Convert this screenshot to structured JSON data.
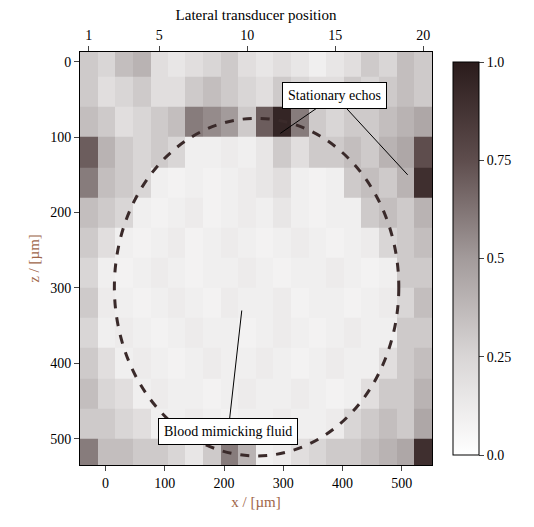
{
  "chart_data": {
    "type": "heatmap",
    "x_title": "x / [µm]",
    "y_title": "z / [µm]",
    "x2_title": "Lateral transducer position",
    "xlim": [
      -43,
      551
    ],
    "xticks": [
      0,
      100,
      200,
      300,
      400,
      500
    ],
    "x2lim": [
      0.5,
      20.5
    ],
    "x2ticks": [
      1,
      5,
      10,
      15,
      20
    ],
    "ylim": [
      535,
      -13
    ],
    "yticks": [
      0,
      100,
      200,
      300,
      400,
      500
    ],
    "grid": false,
    "x": [
      -28,
      2,
      31,
      61,
      91,
      120,
      150,
      180,
      209,
      239,
      269,
      298,
      328,
      358,
      387,
      417,
      447,
      477,
      506,
      536
    ],
    "y": [
      0,
      40,
      80,
      120,
      160,
      200,
      240,
      280,
      320,
      360,
      400,
      440,
      480,
      520
    ],
    "z": [
      [
        0.3,
        0.25,
        0.35,
        0.4,
        0.2,
        0.15,
        0.2,
        0.25,
        0.3,
        0.2,
        0.15,
        0.2,
        0.15,
        0.1,
        0.15,
        0.2,
        0.3,
        0.25,
        0.35,
        0.3
      ],
      [
        0.3,
        0.2,
        0.25,
        0.3,
        0.2,
        0.2,
        0.3,
        0.35,
        0.3,
        0.25,
        0.2,
        0.3,
        0.25,
        0.2,
        0.2,
        0.3,
        0.25,
        0.3,
        0.35,
        0.3
      ],
      [
        0.35,
        0.3,
        0.2,
        0.25,
        0.3,
        0.35,
        0.6,
        0.55,
        0.5,
        0.3,
        0.7,
        0.95,
        0.6,
        0.3,
        0.25,
        0.3,
        0.3,
        0.35,
        0.4,
        0.45
      ],
      [
        0.7,
        0.4,
        0.3,
        0.25,
        0.3,
        0.25,
        0.1,
        0.1,
        0.12,
        0.1,
        0.15,
        0.3,
        0.2,
        0.3,
        0.3,
        0.35,
        0.3,
        0.4,
        0.45,
        0.75
      ],
      [
        0.6,
        0.35,
        0.3,
        0.25,
        0.1,
        0.08,
        0.1,
        0.08,
        0.1,
        0.12,
        0.15,
        0.2,
        0.1,
        0.08,
        0.1,
        0.3,
        0.35,
        0.3,
        0.4,
        0.9
      ],
      [
        0.35,
        0.3,
        0.25,
        0.1,
        0.08,
        0.1,
        0.12,
        0.08,
        0.1,
        0.12,
        0.1,
        0.15,
        0.1,
        0.08,
        0.1,
        0.1,
        0.3,
        0.35,
        0.3,
        0.4
      ],
      [
        0.3,
        0.2,
        0.1,
        0.08,
        0.1,
        0.12,
        0.08,
        0.1,
        0.12,
        0.1,
        0.08,
        0.1,
        0.12,
        0.1,
        0.08,
        0.1,
        0.12,
        0.25,
        0.3,
        0.35
      ],
      [
        0.25,
        0.1,
        0.08,
        0.1,
        0.12,
        0.1,
        0.08,
        0.1,
        0.1,
        0.12,
        0.1,
        0.08,
        0.1,
        0.1,
        0.12,
        0.1,
        0.08,
        0.1,
        0.3,
        0.3
      ],
      [
        0.3,
        0.12,
        0.1,
        0.08,
        0.1,
        0.12,
        0.1,
        0.08,
        0.12,
        0.1,
        0.1,
        0.12,
        0.08,
        0.1,
        0.1,
        0.08,
        0.1,
        0.12,
        0.25,
        0.35
      ],
      [
        0.25,
        0.1,
        0.12,
        0.1,
        0.08,
        0.1,
        0.12,
        0.1,
        0.1,
        0.08,
        0.1,
        0.12,
        0.1,
        0.08,
        0.1,
        0.12,
        0.1,
        0.1,
        0.3,
        0.3
      ],
      [
        0.3,
        0.2,
        0.1,
        0.12,
        0.1,
        0.08,
        0.1,
        0.12,
        0.1,
        0.1,
        0.12,
        0.1,
        0.08,
        0.1,
        0.12,
        0.1,
        0.1,
        0.2,
        0.3,
        0.35
      ],
      [
        0.35,
        0.25,
        0.2,
        0.1,
        0.12,
        0.1,
        0.1,
        0.08,
        0.1,
        0.12,
        0.1,
        0.1,
        0.12,
        0.1,
        0.08,
        0.1,
        0.2,
        0.3,
        0.3,
        0.4
      ],
      [
        0.3,
        0.3,
        0.25,
        0.2,
        0.1,
        0.1,
        0.12,
        0.1,
        0.08,
        0.1,
        0.1,
        0.12,
        0.1,
        0.1,
        0.12,
        0.25,
        0.3,
        0.35,
        0.3,
        0.45
      ],
      [
        0.6,
        0.35,
        0.35,
        0.3,
        0.3,
        0.25,
        0.15,
        0.3,
        0.6,
        0.4,
        0.1,
        0.12,
        0.2,
        0.25,
        0.3,
        0.3,
        0.35,
        0.4,
        0.45,
        0.9
      ]
    ],
    "colorbar": {
      "range": [
        0,
        1
      ],
      "ticks": [
        {
          "value": 0,
          "label": "0.0"
        },
        0.25,
        0.5,
        0.75,
        {
          "value": 1,
          "label": "1.0"
        }
      ]
    },
    "outline": {
      "x": [
        15,
        495
      ],
      "y": [
        75,
        523
      ]
    },
    "annotations": [
      {
        "text": "Stationary echos",
        "x": 387,
        "y": 45,
        "arrows": [
          [
            295,
            95
          ],
          [
            510,
            150
          ]
        ]
      },
      {
        "text": "Blood mimicking fluid",
        "x": 207,
        "y": 491,
        "arrows": [
          [
            230,
            330
          ]
        ]
      }
    ]
  }
}
